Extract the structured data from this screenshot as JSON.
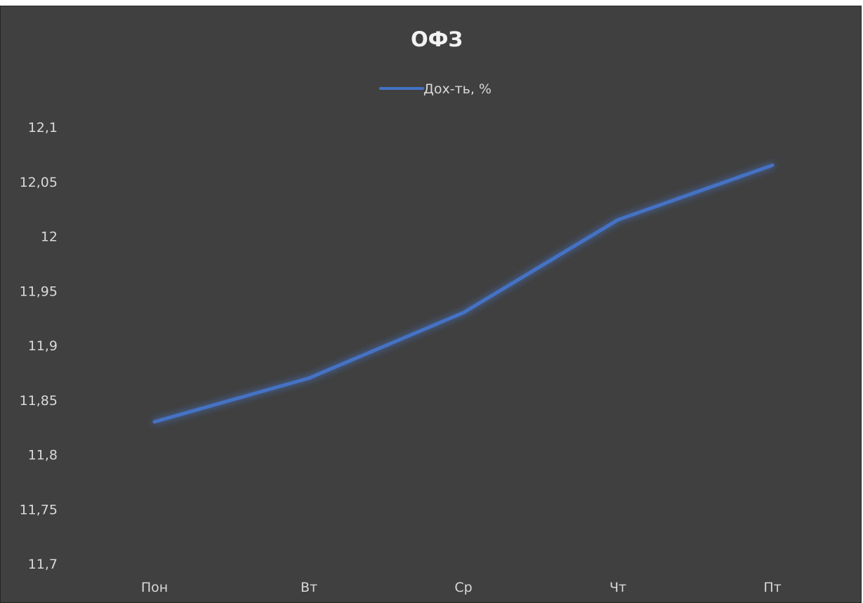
{
  "chart_data": {
    "type": "line",
    "title": "ОФЗ",
    "categories": [
      "Пон",
      "Вт",
      "Ср",
      "Чт",
      "Пт"
    ],
    "series": [
      {
        "name": "Дох-ть, %",
        "values": [
          11.83,
          11.87,
          11.93,
          12.015,
          12.065
        ],
        "color": "#4472c4"
      }
    ],
    "y_ticks": [
      "11,7",
      "11,75",
      "11,8",
      "11,85",
      "11,9",
      "11,95",
      "12",
      "12,05",
      "12,1"
    ],
    "ylim": [
      11.7,
      12.1
    ],
    "grid": false,
    "legend_position": "top",
    "background_color": "#404040",
    "text_color": "#d9d9d9"
  }
}
